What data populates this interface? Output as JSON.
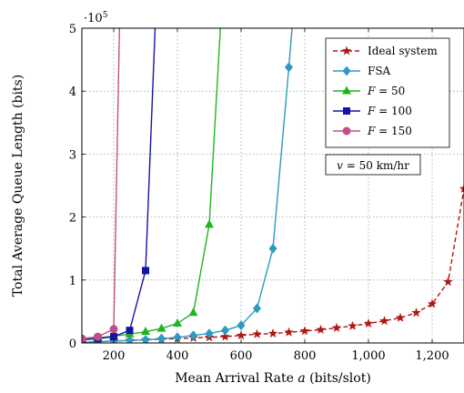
{
  "chart_data": {
    "type": "line",
    "title": "",
    "xlabel_prefix": "Mean Arrival Rate ",
    "xlabel_var": "a",
    "xlabel_suffix": " (bits/slot)",
    "ylabel": "Total Average Queue Length (bits)",
    "y_multiplier_base": "·10",
    "y_multiplier_exp": "5",
    "xlim": [
      100,
      1300
    ],
    "ylim": [
      0,
      5
    ],
    "x_ticks": [
      200,
      400,
      600,
      800,
      1000,
      1200
    ],
    "x_tick_labels": [
      "200",
      "400",
      "600",
      "800",
      "1,000",
      "1,200"
    ],
    "y_ticks": [
      0,
      1,
      2,
      3,
      4,
      5
    ],
    "y_tick_labels": [
      "0",
      "1",
      "2",
      "3",
      "4",
      "5"
    ],
    "grid": true,
    "legend_position": "top-right",
    "annotation": "v = 50 km/hr",
    "annotation_var": "v",
    "annotation_rest": " = 50 km/hr",
    "series": [
      {
        "name": "Ideal system",
        "label_var": "",
        "label_rest": "Ideal system",
        "color": "#b01717",
        "marker": "star",
        "dash": "dashed",
        "x": [
          100,
          150,
          200,
          250,
          300,
          350,
          400,
          450,
          500,
          550,
          600,
          650,
          700,
          750,
          800,
          850,
          900,
          950,
          1000,
          1050,
          1100,
          1150,
          1200,
          1250,
          1300
        ],
        "y": [
          0.01,
          0.02,
          0.03,
          0.04,
          0.05,
          0.06,
          0.07,
          0.08,
          0.09,
          0.1,
          0.12,
          0.14,
          0.15,
          0.17,
          0.19,
          0.21,
          0.24,
          0.27,
          0.31,
          0.35,
          0.4,
          0.48,
          0.62,
          0.97,
          2.45
        ]
      },
      {
        "name": "FSA",
        "label_var": "",
        "label_rest": "FSA",
        "color": "#2b9bbf",
        "marker": "diamond",
        "dash": "solid",
        "x": [
          100,
          150,
          200,
          250,
          300,
          350,
          400,
          450,
          500,
          550,
          600,
          650,
          700,
          750,
          760
        ],
        "y": [
          0.01,
          0.02,
          0.03,
          0.04,
          0.05,
          0.07,
          0.09,
          0.12,
          0.15,
          0.2,
          0.28,
          0.55,
          1.5,
          4.38,
          5.0
        ]
      },
      {
        "name": "F = 50",
        "label_var": "F",
        "label_rest": " = 50",
        "color": "#1fb51f",
        "marker": "triangle",
        "dash": "solid",
        "x": [
          100,
          150,
          200,
          250,
          300,
          350,
          400,
          450,
          500,
          535
        ],
        "y": [
          0.05,
          0.08,
          0.11,
          0.14,
          0.18,
          0.23,
          0.31,
          0.48,
          1.88,
          5.0
        ]
      },
      {
        "name": "F = 100",
        "label_var": "F",
        "label_rest": " = 100",
        "color": "#1414a8",
        "marker": "square",
        "dash": "solid",
        "x": [
          100,
          150,
          200,
          250,
          300,
          330
        ],
        "y": [
          0.05,
          0.07,
          0.1,
          0.2,
          1.15,
          5.0
        ]
      },
      {
        "name": "F = 150",
        "label_var": "F",
        "label_rest": " = 150",
        "color": "#c0508a",
        "marker": "circle",
        "dash": "solid",
        "x": [
          100,
          150,
          200,
          218
        ],
        "y": [
          0.07,
          0.1,
          0.22,
          5.0
        ]
      }
    ]
  }
}
